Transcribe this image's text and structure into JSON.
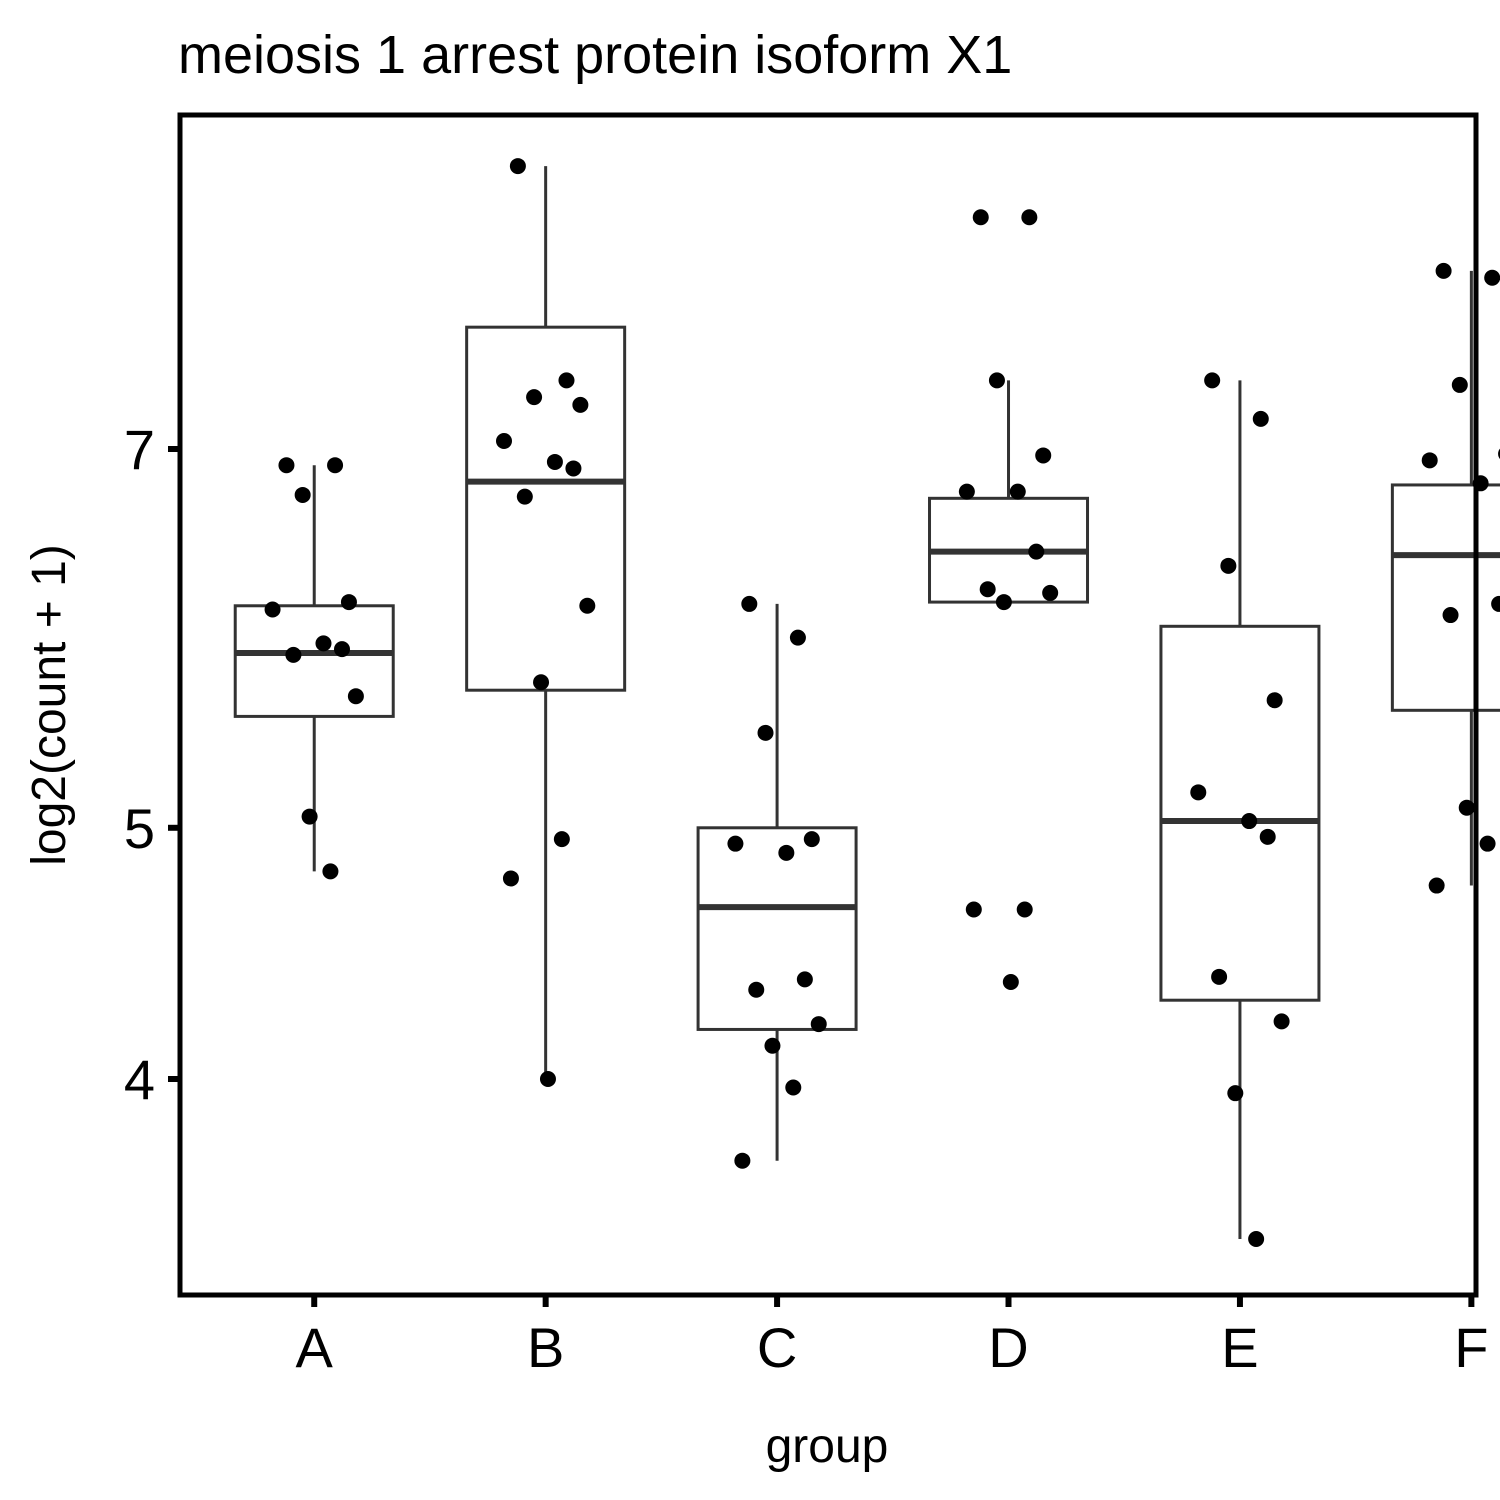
{
  "chart_data": {
    "type": "box",
    "title": "meiosis 1 arrest protein isoform X1",
    "xlabel": "group",
    "ylabel": "log2(count + 1)",
    "y_scale": "log2-transformed",
    "yticks": [
      4,
      5,
      7
    ],
    "ylim": [
      3.6,
      9.2
    ],
    "categories": [
      "A",
      "B",
      "C",
      "D",
      "E",
      "F"
    ],
    "boxes": [
      {
        "group": "A",
        "min": 4.81,
        "q1": 5.52,
        "median": 5.84,
        "q3": 6.09,
        "max": 6.9
      },
      {
        "group": "B",
        "min": 4.0,
        "q1": 5.65,
        "median": 6.8,
        "q3": 7.8,
        "max": 9.0
      },
      {
        "group": "C",
        "min": 3.72,
        "q1": 4.18,
        "median": 4.66,
        "q3": 5.0,
        "max": 6.1
      },
      {
        "group": "D",
        "min": 6.11,
        "q1": 6.11,
        "median": 6.39,
        "q3": 6.7,
        "max": 7.44
      },
      {
        "group": "E",
        "min": 3.47,
        "q1": 4.29,
        "median": 5.03,
        "q3": 5.98,
        "max": 7.44
      },
      {
        "group": "F",
        "min": 4.75,
        "q1": 5.55,
        "median": 6.37,
        "q3": 6.78,
        "max": 8.2
      }
    ],
    "points": [
      {
        "group": "A",
        "values": [
          6.9,
          6.9,
          6.72,
          6.11,
          6.07,
          5.89,
          5.86,
          5.83,
          5.62,
          5.05,
          4.81
        ]
      },
      {
        "group": "B",
        "values": [
          9.0,
          7.44,
          7.33,
          7.28,
          7.05,
          6.92,
          6.88,
          6.71,
          6.09,
          5.69,
          4.95,
          4.78,
          4.0
        ]
      },
      {
        "group": "C",
        "values": [
          6.1,
          5.92,
          5.44,
          4.95,
          4.93,
          4.89,
          4.37,
          4.33,
          4.2,
          4.12,
          3.97,
          3.72
        ]
      },
      {
        "group": "D",
        "values": [
          8.6,
          8.6,
          7.44,
          6.96,
          6.74,
          6.74,
          6.39,
          6.18,
          6.16,
          6.11,
          4.65,
          4.65,
          4.36
        ]
      },
      {
        "group": "E",
        "values": [
          7.44,
          7.19,
          6.31,
          5.6,
          5.16,
          5.03,
          4.96,
          4.38,
          4.21,
          3.95,
          3.47
        ]
      },
      {
        "group": "F",
        "values": [
          8.2,
          8.15,
          7.41,
          6.97,
          6.93,
          6.79,
          6.1,
          6.04,
          5.48,
          5.09,
          4.93,
          4.75
        ]
      }
    ]
  }
}
